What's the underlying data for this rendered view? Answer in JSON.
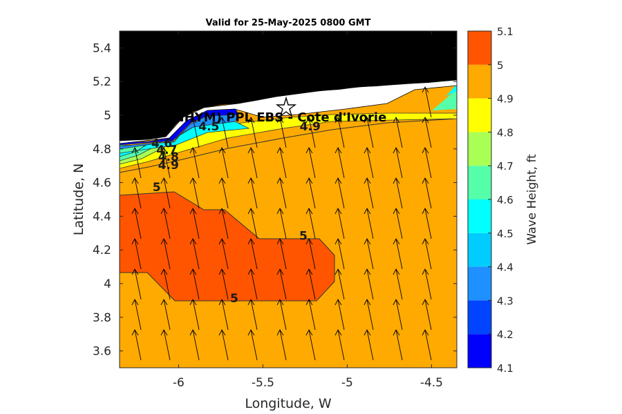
{
  "chart_data": {
    "type": "contour-map",
    "title": "Valid for 25-May-2025 0800 GMT",
    "xlabel": "Longitude, W",
    "ylabel": "Latitude, N",
    "xlim": [
      -6.35,
      -4.35
    ],
    "ylim": [
      3.5,
      5.5
    ],
    "x_ticks": [
      -6,
      -5.5,
      -5,
      -4.5
    ],
    "x_tick_labels": [
      "-6",
      "-5.5",
      "-5",
      "-4.5"
    ],
    "y_ticks": [
      3.6,
      3.8,
      4.0,
      4.2,
      4.4,
      4.6,
      4.8,
      5.0,
      5.2,
      5.4
    ],
    "y_tick_labels": [
      "3.6",
      "3.8",
      "4",
      "4.2",
      "4.4",
      "4.6",
      "4.8",
      "5",
      "5.2",
      "5.4"
    ],
    "colorbar": {
      "label": "Wave Height, ft",
      "levels": [
        4.1,
        4.2,
        4.3,
        4.4,
        4.5,
        4.6,
        4.7,
        4.8,
        4.9,
        5.0,
        5.1
      ],
      "level_labels": [
        "4.1",
        "4.2",
        "4.3",
        "4.4",
        "4.5",
        "4.6",
        "4.7",
        "4.8",
        "4.9",
        "5",
        "5.1"
      ],
      "colors": [
        "#0000aa",
        "#0000ff",
        "#0044ff",
        "#1e90ff",
        "#00ccff",
        "#00ffff",
        "#55ffaa",
        "#aaff55",
        "#ffff00",
        "#ffaa00",
        "#ff5500"
      ]
    },
    "land_color": "#000000",
    "coast_strip_color": "#ffffff",
    "station": {
      "label": "(ONHYM) PPL EBS - Cote d'Ivorie",
      "lon": -5.35,
      "lat": 5.05,
      "marker": "star"
    },
    "contour_labels": [
      {
        "text": "4.5",
        "lon": -5.82,
        "lat": 4.91
      },
      {
        "text": "4.9",
        "lon": -5.22,
        "lat": 4.91
      },
      {
        "text": "4.6",
        "lon": -6.1,
        "lat": 4.81
      },
      {
        "text": "4.7",
        "lon": -6.07,
        "lat": 4.77
      },
      {
        "text": "4.8",
        "lon": -6.06,
        "lat": 4.73
      },
      {
        "text": "4.9",
        "lon": -6.06,
        "lat": 4.68
      },
      {
        "text": "5",
        "lon": -6.13,
        "lat": 4.55
      },
      {
        "text": "5",
        "lon": -5.26,
        "lat": 4.26
      },
      {
        "text": "5",
        "lon": -5.67,
        "lat": 3.89
      }
    ],
    "wave_direction": "from south-southeast (vectors pointing north-northwest)",
    "grid": false
  }
}
